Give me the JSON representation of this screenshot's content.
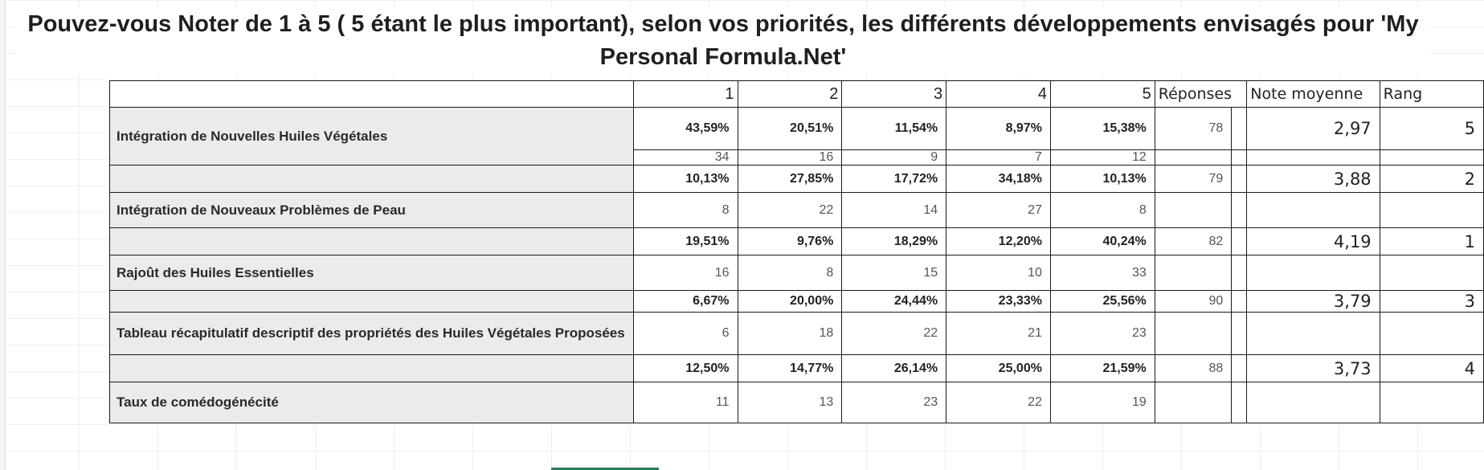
{
  "title": "Pouvez-vous Noter de 1 à 5 ( 5 étant le plus important), selon vos priorités, les différents développements envisagés pour 'My Personal Formula.Net'",
  "header": {
    "c1": "1",
    "c2": "2",
    "c3": "3",
    "c4": "4",
    "c5": "5",
    "responses": "Réponses",
    "avg": "Note moyenne",
    "rank": "Rang"
  },
  "rows": [
    {
      "label": "Intégration de Nouvelles Huiles Végétales",
      "pct": [
        "43,59%",
        "20,51%",
        "11,54%",
        "8,97%",
        "15,38%"
      ],
      "counts": [
        "34",
        "16",
        "9",
        "7",
        "12"
      ],
      "responses": "78",
      "avg": "2,97",
      "rank": "5"
    },
    {
      "label": "Intégration de Nouveaux Problèmes de Peau",
      "pct": [
        "10,13%",
        "27,85%",
        "17,72%",
        "34,18%",
        "10,13%"
      ],
      "counts": [
        "8",
        "22",
        "14",
        "27",
        "8"
      ],
      "responses": "79",
      "avg": "3,88",
      "rank": "2"
    },
    {
      "label": "Rajoût des Huiles Essentielles",
      "pct": [
        "19,51%",
        "9,76%",
        "18,29%",
        "12,20%",
        "40,24%"
      ],
      "counts": [
        "16",
        "8",
        "15",
        "10",
        "33"
      ],
      "responses": "82",
      "avg": "4,19",
      "rank": "1"
    },
    {
      "label": "Tableau récapitulatif descriptif des propriétés des Huiles Végétales Proposées",
      "pct": [
        "6,67%",
        "20,00%",
        "24,44%",
        "23,33%",
        "25,56%"
      ],
      "counts": [
        "6",
        "18",
        "22",
        "21",
        "23"
      ],
      "responses": "90",
      "avg": "3,79",
      "rank": "3"
    },
    {
      "label": "Taux de comédogénécité",
      "pct": [
        "12,50%",
        "14,77%",
        "26,14%",
        "25,00%",
        "21,59%"
      ],
      "counts": [
        "11",
        "13",
        "23",
        "22",
        "19"
      ],
      "responses": "88",
      "avg": "3,73",
      "rank": "4"
    }
  ]
}
